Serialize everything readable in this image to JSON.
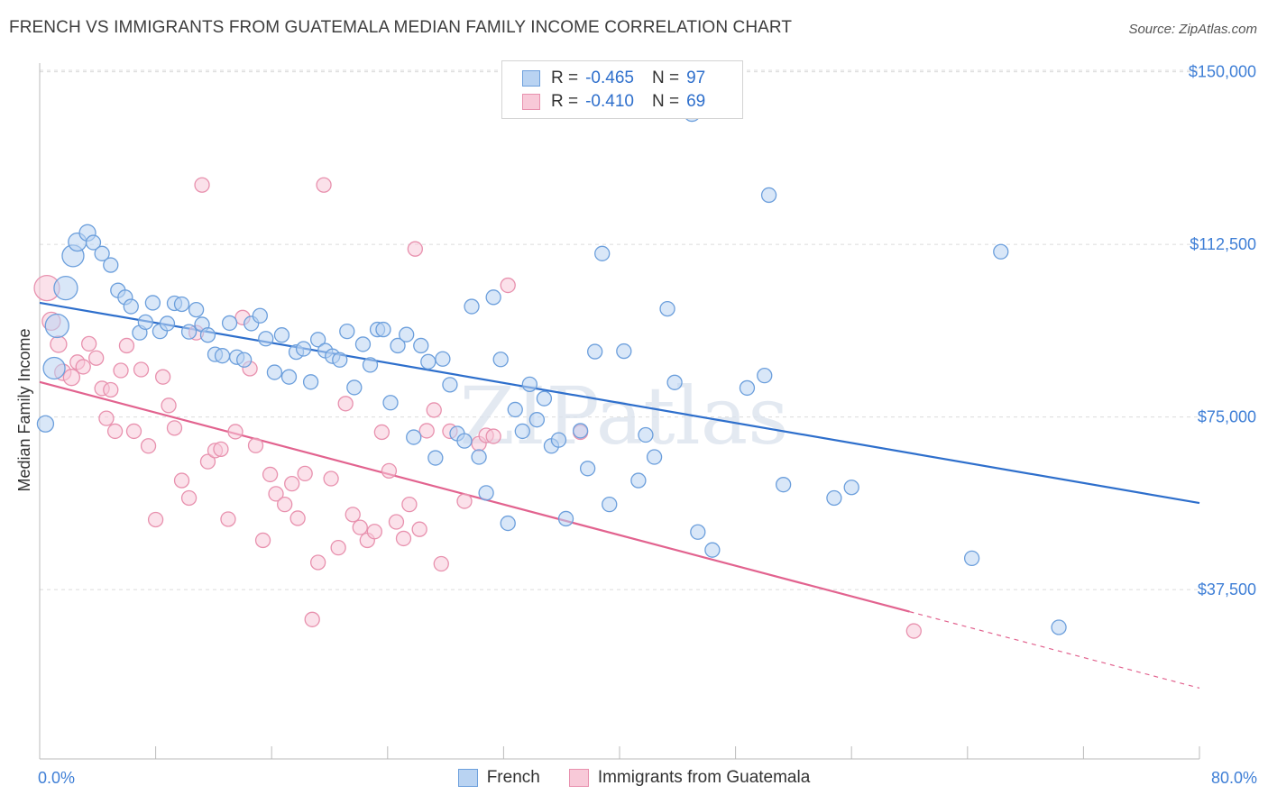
{
  "title": "FRENCH VS IMMIGRANTS FROM GUATEMALA MEDIAN FAMILY INCOME CORRELATION CHART",
  "source": "Source: ZipAtlas.com",
  "watermark": "ZIPatlas",
  "stats": {
    "french": {
      "r_label": "R =",
      "r_value": "-0.465",
      "n_label": "N =",
      "n_value": "97"
    },
    "guatemala": {
      "r_label": "R =",
      "r_value": "-0.410",
      "n_label": "N =",
      "n_value": "69"
    }
  },
  "legend": {
    "french": "French",
    "guatemala": "Immigrants from Guatemala"
  },
  "colors": {
    "french_fill": "#b9d3f2",
    "french_stroke": "#6c9fdc",
    "french_line": "#2e6fcc",
    "guatemala_fill": "#f8c9d8",
    "guatemala_stroke": "#e891ae",
    "guatemala_line": "#e2638f",
    "tick_label": "#3f7fd6"
  },
  "chart_data": {
    "type": "scatter",
    "title": "FRENCH VS IMMIGRANTS FROM GUATEMALA MEDIAN FAMILY INCOME CORRELATION CHART",
    "xlabel": "",
    "ylabel": "Median Family Income",
    "xlim": [
      0,
      80
    ],
    "ylim": [
      0,
      152000
    ],
    "x_tick_labels": [
      "0.0%",
      "80.0%"
    ],
    "y_ticks": [
      37500,
      75000,
      112500,
      150000
    ],
    "y_tick_labels": [
      "$37,500",
      "$75,000",
      "$112,500",
      "$150,000"
    ],
    "grid": true,
    "series": [
      {
        "name": "French",
        "trend": {
          "x": [
            0,
            80
          ],
          "y": [
            99800,
            56300
          ]
        },
        "points": [
          [
            0.4,
            73500,
            9
          ],
          [
            1.0,
            85600,
            12
          ],
          [
            1.2,
            94800,
            13
          ],
          [
            1.8,
            103000,
            13
          ],
          [
            2.3,
            110000,
            12
          ],
          [
            2.6,
            113000,
            10
          ],
          [
            3.3,
            115000,
            9
          ],
          [
            3.7,
            112900,
            8
          ],
          [
            4.3,
            110500,
            8
          ],
          [
            4.9,
            108000,
            8
          ],
          [
            5.4,
            102500,
            8
          ],
          [
            5.9,
            101000,
            8
          ],
          [
            6.3,
            99000,
            8
          ],
          [
            6.9,
            93300,
            8
          ],
          [
            7.3,
            95600,
            8
          ],
          [
            7.8,
            99800,
            8
          ],
          [
            8.3,
            93600,
            8
          ],
          [
            8.8,
            95300,
            8
          ],
          [
            9.3,
            99700,
            8
          ],
          [
            9.8,
            99500,
            8
          ],
          [
            10.3,
            93500,
            8
          ],
          [
            10.8,
            98300,
            8
          ],
          [
            11.2,
            95100,
            8
          ],
          [
            11.6,
            92800,
            8
          ],
          [
            12.1,
            88600,
            8
          ],
          [
            12.6,
            88300,
            8
          ],
          [
            13.1,
            95400,
            8
          ],
          [
            13.6,
            88000,
            8
          ],
          [
            14.1,
            87400,
            8
          ],
          [
            14.6,
            95300,
            8
          ],
          [
            15.2,
            97000,
            8
          ],
          [
            15.6,
            92000,
            8
          ],
          [
            16.2,
            84700,
            8
          ],
          [
            16.7,
            92800,
            8
          ],
          [
            17.2,
            83700,
            8
          ],
          [
            17.7,
            89100,
            8
          ],
          [
            18.2,
            89800,
            8
          ],
          [
            18.7,
            82600,
            8
          ],
          [
            19.2,
            91800,
            8
          ],
          [
            19.7,
            89400,
            8
          ],
          [
            20.2,
            88200,
            8
          ],
          [
            20.7,
            87400,
            8
          ],
          [
            21.2,
            93600,
            8
          ],
          [
            21.7,
            81400,
            8
          ],
          [
            22.3,
            90800,
            8
          ],
          [
            22.8,
            86300,
            8
          ],
          [
            23.3,
            94000,
            8
          ],
          [
            23.7,
            94000,
            8
          ],
          [
            24.2,
            78100,
            8
          ],
          [
            24.7,
            90500,
            8
          ],
          [
            25.3,
            92900,
            8
          ],
          [
            25.8,
            70600,
            8
          ],
          [
            26.3,
            90500,
            8
          ],
          [
            26.8,
            87000,
            8
          ],
          [
            27.3,
            66100,
            8
          ],
          [
            27.8,
            87600,
            8
          ],
          [
            28.3,
            82000,
            8
          ],
          [
            28.8,
            71400,
            8
          ],
          [
            29.3,
            69800,
            8
          ],
          [
            29.8,
            99000,
            8
          ],
          [
            30.3,
            66300,
            8
          ],
          [
            30.8,
            58500,
            8
          ],
          [
            31.3,
            101000,
            8
          ],
          [
            31.8,
            87500,
            8
          ],
          [
            32.3,
            51900,
            8
          ],
          [
            32.8,
            76600,
            8
          ],
          [
            33.3,
            71900,
            8
          ],
          [
            33.8,
            82100,
            8
          ],
          [
            34.3,
            74400,
            8
          ],
          [
            34.8,
            79000,
            8
          ],
          [
            35.3,
            68700,
            8
          ],
          [
            35.8,
            70000,
            8
          ],
          [
            36.3,
            52900,
            8
          ],
          [
            37.3,
            72000,
            8
          ],
          [
            37.8,
            63800,
            8
          ],
          [
            38.3,
            89200,
            8
          ],
          [
            38.8,
            110500,
            8
          ],
          [
            39.3,
            56000,
            8
          ],
          [
            40.3,
            89300,
            8
          ],
          [
            41.3,
            61200,
            8
          ],
          [
            41.8,
            71100,
            8
          ],
          [
            42.4,
            66300,
            8
          ],
          [
            43.3,
            98500,
            8
          ],
          [
            43.8,
            82500,
            8
          ],
          [
            45.0,
            141000,
            9
          ],
          [
            45.4,
            50000,
            8
          ],
          [
            46.4,
            46100,
            8
          ],
          [
            48.8,
            81300,
            8
          ],
          [
            50.0,
            84000,
            8
          ],
          [
            50.3,
            123200,
            8
          ],
          [
            51.3,
            60300,
            8
          ],
          [
            54.8,
            57400,
            8
          ],
          [
            56.0,
            59700,
            8
          ],
          [
            64.3,
            44300,
            8
          ],
          [
            66.3,
            110900,
            8
          ],
          [
            70.3,
            29300,
            8
          ]
        ]
      },
      {
        "name": "Immigrants from Guatemala",
        "trend": {
          "x": [
            0,
            60
          ],
          "y": [
            82600,
            32700
          ]
        },
        "trend_dashed": {
          "x": [
            60,
            80
          ],
          "y": [
            32700,
            16100
          ]
        },
        "points": [
          [
            0.5,
            103000,
            14
          ],
          [
            0.8,
            95800,
            10
          ],
          [
            1.3,
            90800,
            9
          ],
          [
            1.6,
            84700,
            9
          ],
          [
            2.2,
            83600,
            9
          ],
          [
            2.6,
            86900,
            8
          ],
          [
            3.0,
            85900,
            8
          ],
          [
            3.4,
            90900,
            8
          ],
          [
            3.9,
            87800,
            8
          ],
          [
            4.3,
            81200,
            8
          ],
          [
            4.6,
            74700,
            8
          ],
          [
            4.9,
            80900,
            8
          ],
          [
            5.2,
            71900,
            8
          ],
          [
            5.6,
            85100,
            8
          ],
          [
            6.0,
            90500,
            8
          ],
          [
            6.5,
            71900,
            8
          ],
          [
            7.0,
            85300,
            8
          ],
          [
            7.5,
            68700,
            8
          ],
          [
            8.0,
            52700,
            8
          ],
          [
            8.5,
            83700,
            8
          ],
          [
            8.9,
            77500,
            8
          ],
          [
            9.3,
            72600,
            8
          ],
          [
            9.8,
            61200,
            8
          ],
          [
            10.3,
            57400,
            8
          ],
          [
            10.8,
            93300,
            8
          ],
          [
            11.2,
            125400,
            8
          ],
          [
            11.6,
            65300,
            8
          ],
          [
            12.1,
            67700,
            8
          ],
          [
            12.5,
            68000,
            8
          ],
          [
            13.0,
            52800,
            8
          ],
          [
            13.5,
            71800,
            8
          ],
          [
            14.0,
            96600,
            8
          ],
          [
            14.5,
            85500,
            8
          ],
          [
            14.9,
            68800,
            8
          ],
          [
            15.4,
            48200,
            8
          ],
          [
            15.9,
            62500,
            8
          ],
          [
            16.3,
            58300,
            8
          ],
          [
            16.9,
            56000,
            8
          ],
          [
            17.4,
            60500,
            8
          ],
          [
            17.8,
            53000,
            8
          ],
          [
            18.3,
            62700,
            8
          ],
          [
            18.8,
            31000,
            8
          ],
          [
            19.2,
            43400,
            8
          ],
          [
            19.6,
            125400,
            8
          ],
          [
            20.1,
            61600,
            8
          ],
          [
            20.6,
            46600,
            8
          ],
          [
            21.1,
            77900,
            8
          ],
          [
            21.6,
            53800,
            8
          ],
          [
            22.1,
            51000,
            8
          ],
          [
            22.6,
            48200,
            8
          ],
          [
            23.1,
            50100,
            8
          ],
          [
            23.6,
            71700,
            8
          ],
          [
            24.1,
            63300,
            8
          ],
          [
            24.6,
            52200,
            8
          ],
          [
            25.1,
            48600,
            8
          ],
          [
            25.5,
            56000,
            8
          ],
          [
            25.9,
            111500,
            8
          ],
          [
            26.2,
            50600,
            8
          ],
          [
            26.7,
            72000,
            8
          ],
          [
            27.2,
            76500,
            8
          ],
          [
            27.7,
            43100,
            8
          ],
          [
            28.3,
            71900,
            8
          ],
          [
            29.3,
            56700,
            8
          ],
          [
            30.3,
            69200,
            8
          ],
          [
            30.8,
            71000,
            8
          ],
          [
            31.3,
            70800,
            8
          ],
          [
            32.3,
            103600,
            8
          ],
          [
            37.3,
            71700,
            8
          ],
          [
            60.3,
            28500,
            8
          ]
        ]
      }
    ]
  }
}
